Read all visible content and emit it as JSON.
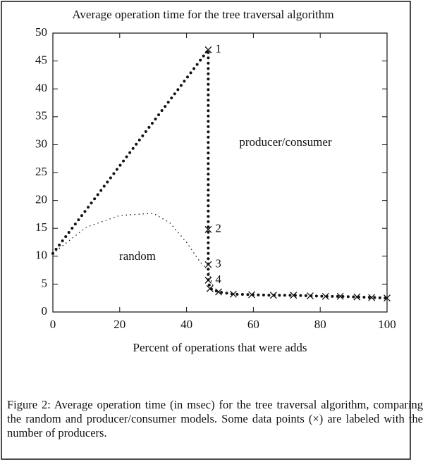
{
  "chart_data": {
    "type": "line",
    "title": "Average operation time for the tree traversal algorithm",
    "xlabel": "Percent of operations that were adds",
    "xlim": [
      0,
      100
    ],
    "ylim": [
      0,
      50
    ],
    "xticks": [
      0,
      20,
      40,
      60,
      80,
      100
    ],
    "yticks": [
      0,
      5,
      10,
      15,
      20,
      25,
      30,
      35,
      40,
      45,
      50
    ],
    "series": [
      {
        "name": "producer/consumer",
        "color": "#111111",
        "x": [
          0,
          46.5,
          46.5,
          46.5,
          46.5,
          47,
          49.6,
          54,
          59.5,
          66,
          72,
          77,
          81.6,
          86,
          91,
          95.4,
          100
        ],
        "values": [
          10.5,
          47,
          14.8,
          8.5,
          5.7,
          4.2,
          3.6,
          3.2,
          3.1,
          3.0,
          3.0,
          2.9,
          2.8,
          2.8,
          2.7,
          2.6,
          2.5
        ],
        "point_labels": [
          null,
          1,
          2,
          3,
          4,
          null,
          null,
          null,
          null,
          null,
          null,
          null,
          null,
          null,
          null,
          null,
          null
        ]
      },
      {
        "name": "random",
        "color": "#111111",
        "x": [
          0,
          10,
          20,
          30,
          35,
          40,
          44,
          46.5,
          48
        ],
        "values": [
          10.5,
          15.2,
          17.3,
          17.7,
          16,
          12.5,
          9,
          7.5,
          4.5
        ]
      }
    ],
    "caption": "Figure 2: Average operation time (in msec) for the tree traversal algorithm, comparing the random and producer/consumer models. Some data points (×) are labeled with the number of producers."
  }
}
